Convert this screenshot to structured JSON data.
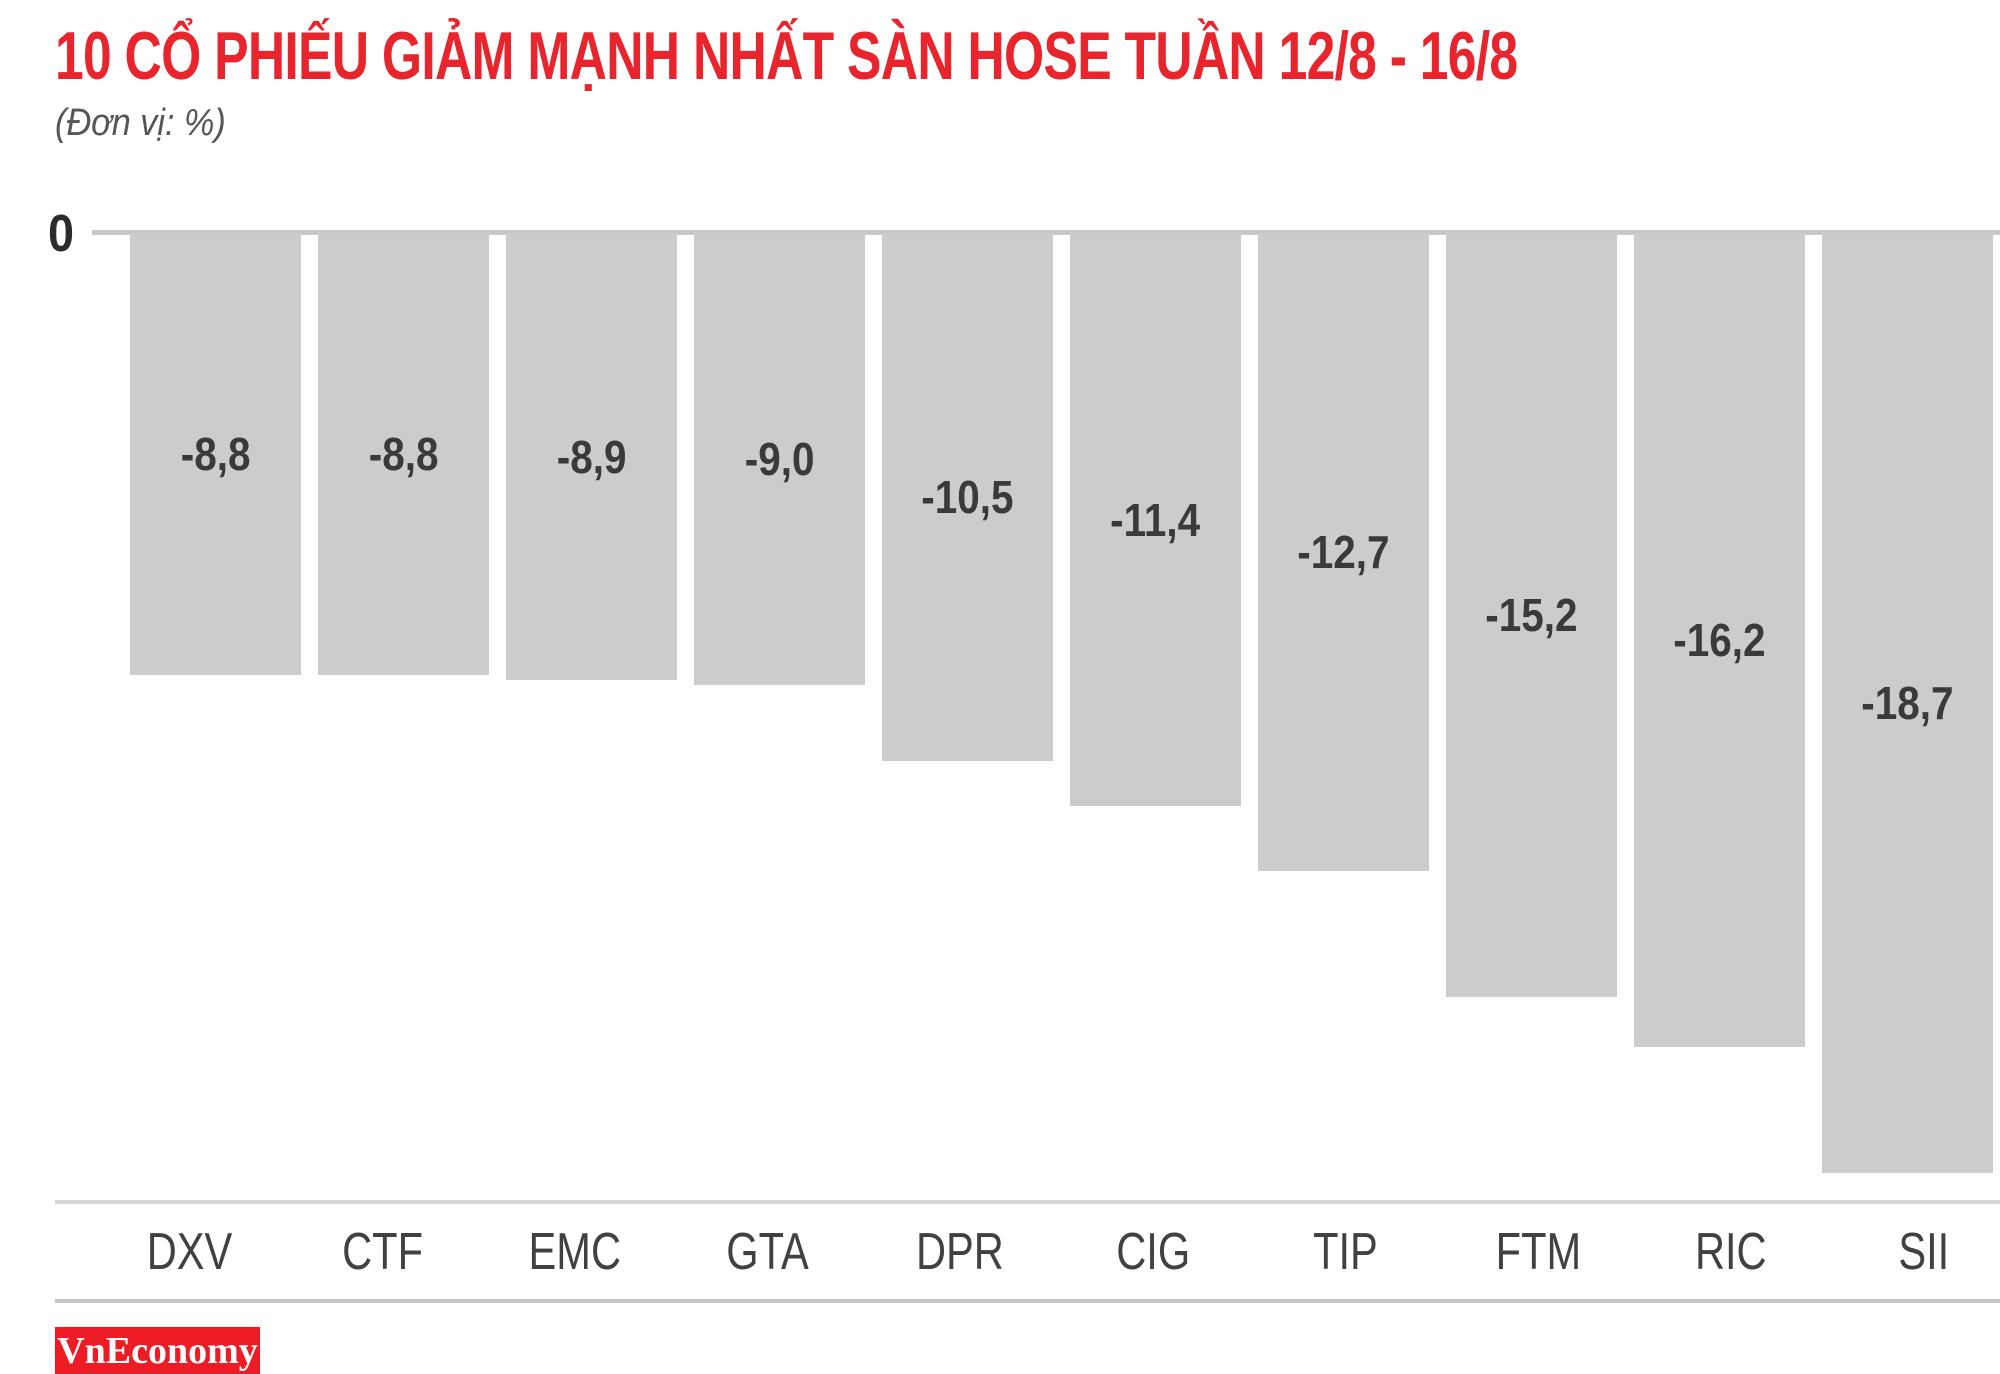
{
  "header": {
    "title": "10 CỔ PHIẾU GIẢM MẠNH NHẤT SÀN HOSE TUẦN 12/8 - 16/8",
    "subtitle": "(Đơn vị: %)"
  },
  "axis": {
    "zero_label": "0"
  },
  "footer": {
    "brand": "VnEconomy"
  },
  "colors": {
    "accent_red": "#E8242C",
    "bar_fill": "#CDCCCC",
    "value_label": "#3A3A3A",
    "category_label": "#414042",
    "axis_line": "#C8C8C8",
    "brand_bg": "#ED1C24",
    "brand_text": "#FFFFFF"
  },
  "chart_data": {
    "type": "bar",
    "orientation": "vertical",
    "title": "10 CỔ PHIẾU GIẢM MẠNH NHẤT SÀN HOSE TUẦN 12/8 - 16/8",
    "unit": "%",
    "categories": [
      "DXV",
      "CTF",
      "EMC",
      "GTA",
      "DPR",
      "CIG",
      "TIP",
      "FTM",
      "RIC",
      "SII"
    ],
    "values": [
      -8.8,
      -8.8,
      -8.9,
      -9.0,
      -10.5,
      -11.4,
      -12.7,
      -15.2,
      -16.2,
      -18.7
    ],
    "value_labels": [
      "-8,8",
      "-8,8",
      "-8,9",
      "-9,0",
      "-10,5",
      "-11,4",
      "-12,7",
      "-15,2",
      "-16,2",
      "-18,7"
    ],
    "baseline": 0,
    "ylim": [
      -20,
      0
    ],
    "grid": false,
    "legend": "none",
    "bar_color": "#CDCCCC"
  }
}
